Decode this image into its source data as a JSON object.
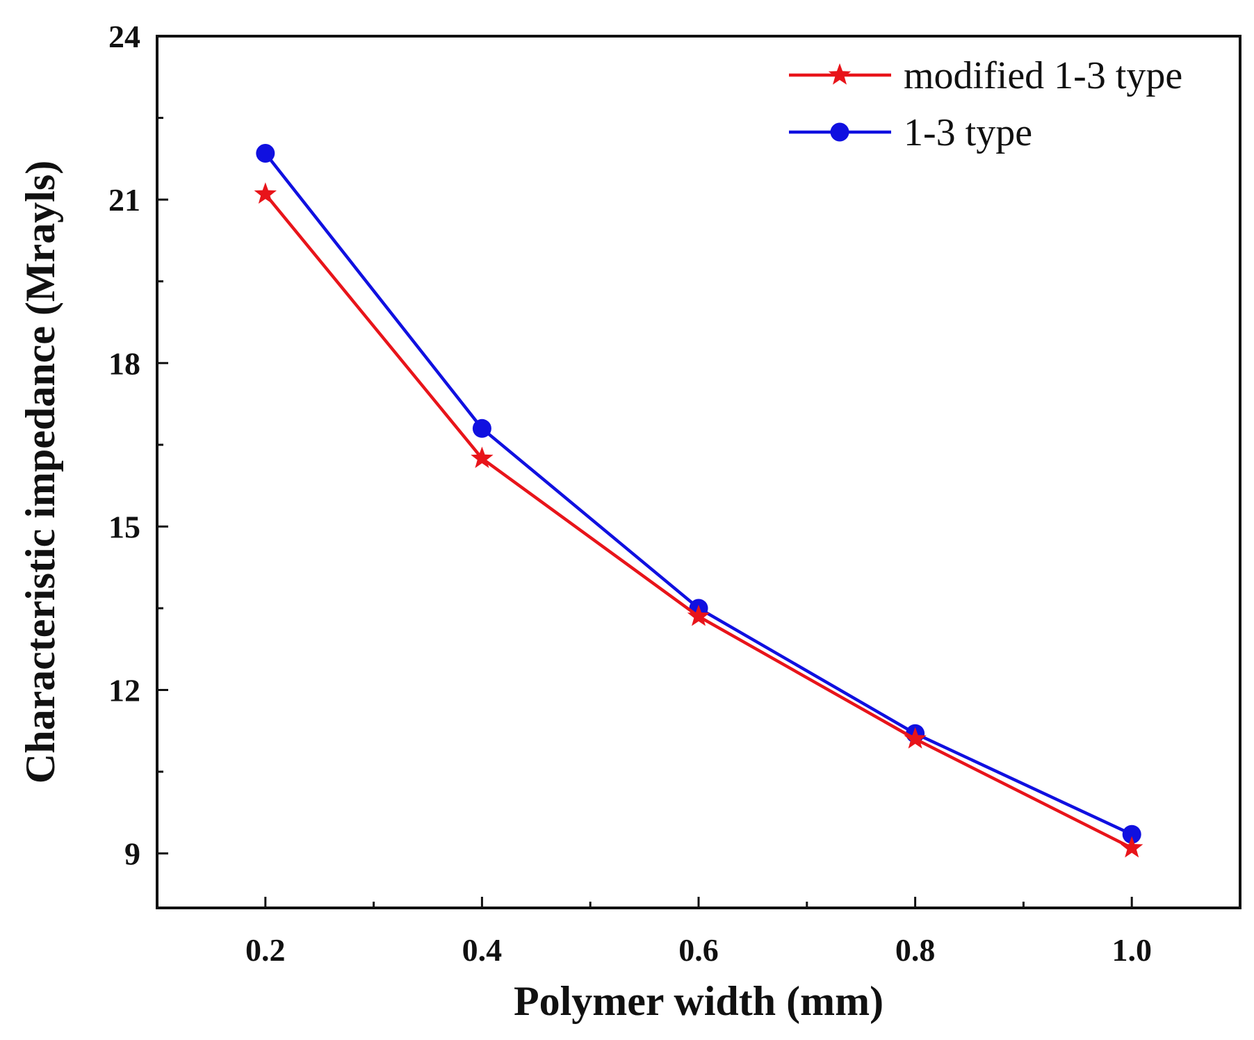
{
  "chart_data": {
    "type": "line",
    "title": "",
    "xlabel": "Polymer width (mm)",
    "ylabel": "Characteristic impedance (Mrayls)",
    "x": [
      0.2,
      0.4,
      0.6,
      0.8,
      1.0
    ],
    "xlim": [
      0.1,
      1.1
    ],
    "ylim": [
      8,
      24
    ],
    "x_ticks": [
      0.2,
      0.4,
      0.6,
      0.8,
      1.0
    ],
    "x_tick_labels": [
      "0.2",
      "0.4",
      "0.6",
      "0.8",
      "1.0"
    ],
    "x_minor_ticks": [
      0.3,
      0.5,
      0.7,
      0.9
    ],
    "y_ticks": [
      9,
      12,
      15,
      18,
      21,
      24
    ],
    "y_tick_labels": [
      "9",
      "12",
      "15",
      "18",
      "21",
      "24"
    ],
    "y_minor_ticks": [
      10.5,
      13.5,
      16.5,
      19.5,
      22.5
    ],
    "grid": false,
    "legend_position": "top-right",
    "series": [
      {
        "name": "modified 1-3 type",
        "marker": "star",
        "color": "#e8141a",
        "values": [
          21.1,
          16.25,
          13.35,
          11.1,
          9.1
        ]
      },
      {
        "name": "1-3 type",
        "marker": "circle",
        "color": "#1010e0",
        "values": [
          21.85,
          16.8,
          13.5,
          11.2,
          9.35
        ]
      }
    ]
  }
}
